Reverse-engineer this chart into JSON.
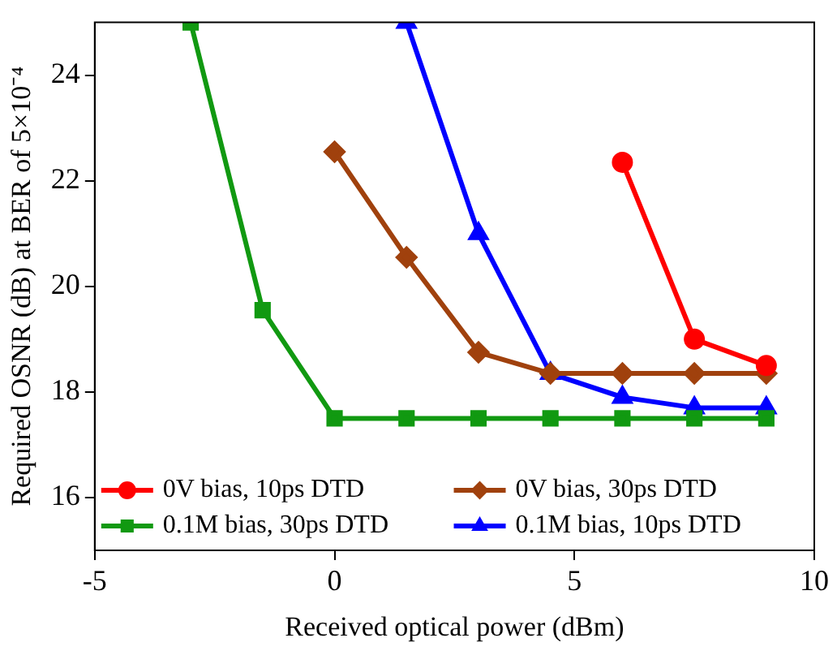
{
  "chart_data": {
    "type": "line",
    "xlabel": "Received optical power (dBm)",
    "ylabel": "Required OSNR (dB) at BER of 5×10⁻⁴",
    "xlim": [
      -5,
      10
    ],
    "xticks": [
      -5,
      0,
      5,
      10
    ],
    "ylim": [
      15,
      25
    ],
    "yticks": [
      16,
      18,
      20,
      22,
      24
    ],
    "grid": false,
    "legend": "bottom",
    "series": [
      {
        "name": "0V bias, 10ps DTD",
        "color": "#ff0000",
        "marker": "circle",
        "x": [
          6,
          7.5,
          9
        ],
        "values": [
          22.35,
          19.0,
          18.5
        ]
      },
      {
        "name": "0V bias, 30ps DTD",
        "color": "#a0410d",
        "marker": "diamond",
        "x": [
          0,
          1.5,
          3,
          4.5,
          6,
          7.5,
          9
        ],
        "values": [
          22.55,
          20.55,
          18.75,
          18.35,
          18.35,
          18.35,
          18.35
        ]
      },
      {
        "name": "0.1M bias, 30ps DTD",
        "color": "#119911",
        "marker": "square",
        "x": [
          -3,
          -1.5,
          0,
          1.5,
          3,
          4.5,
          6,
          7.5,
          9
        ],
        "values": [
          25,
          19.55,
          17.5,
          17.5,
          17.5,
          17.5,
          17.5,
          17.5,
          17.5
        ]
      },
      {
        "name": "0.1M bias, 10ps DTD",
        "color": "#0000ff",
        "marker": "triangle",
        "x": [
          1.5,
          3,
          4.5,
          6,
          7.5,
          9
        ],
        "values": [
          25,
          21.0,
          18.35,
          17.9,
          17.7,
          17.7
        ]
      }
    ]
  }
}
